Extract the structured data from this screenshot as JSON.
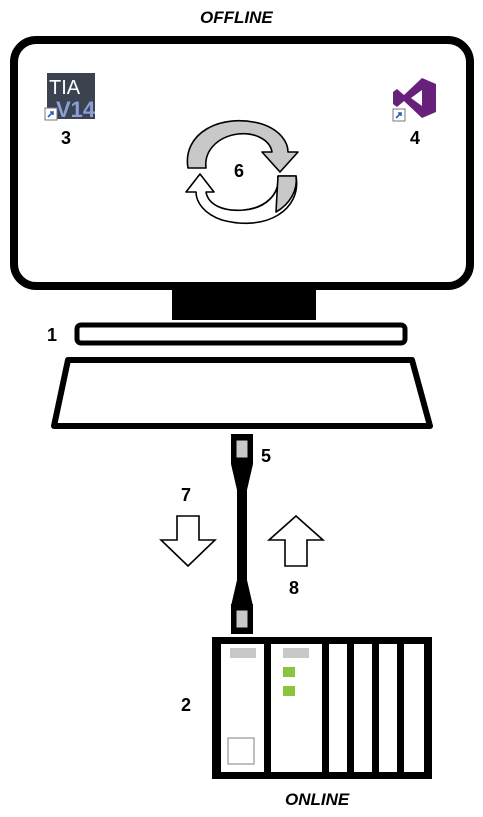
{
  "captions": {
    "top": "OFFLINE",
    "bottom": "ONLINE"
  },
  "labels": {
    "pc": "1",
    "plc": "2",
    "tia_app": "3",
    "vs_app": "4",
    "cable": "5",
    "sync": "6",
    "download": "7",
    "upload": "8"
  },
  "icons": {
    "tia": {
      "name": "tia-portal-v14-icon",
      "text_top": "TIA",
      "text_bottom": "V14"
    },
    "vs": {
      "name": "visual-studio-icon"
    },
    "sync": {
      "name": "sync-cycle-icon"
    }
  },
  "colors": {
    "outline": "#000000",
    "tia_background": "#3b4250",
    "tia_accent": "#8a9ed8",
    "vs_purple": "#68217a",
    "sync_gray": "#c8c8c8",
    "led_green": "#8ac53e",
    "slot_gray": "#c8c8c8"
  }
}
